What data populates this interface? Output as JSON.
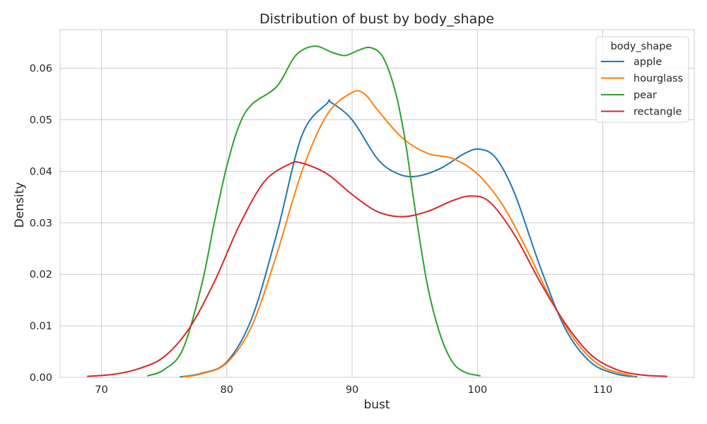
{
  "chart_data": {
    "type": "line",
    "title": "Distribution of bust by body_shape",
    "xlabel": "bust",
    "ylabel": "Density",
    "xlim": [
      66.7,
      117.3
    ],
    "ylim": [
      0,
      0.0675
    ],
    "xticks": [
      70,
      80,
      90,
      100,
      110
    ],
    "yticks": [
      0.0,
      0.01,
      0.02,
      0.03,
      0.04,
      0.05,
      0.06
    ],
    "ytick_labels": [
      "0.00",
      "0.01",
      "0.02",
      "0.03",
      "0.04",
      "0.05",
      "0.06"
    ],
    "grid": true,
    "legend": {
      "title": "body_shape",
      "placement": "upper right"
    },
    "series": [
      {
        "name": "apple",
        "color": "#1f77b4",
        "x": [
          76.3,
          78,
          80,
          82,
          84,
          86,
          88,
          88.3,
          90,
          92,
          93.5,
          95,
          97,
          99,
          100.2,
          101.5,
          103,
          105,
          107,
          109,
          111,
          112.7
        ],
        "y": [
          0.0001,
          0.0008,
          0.003,
          0.0115,
          0.028,
          0.047,
          0.0532,
          0.0534,
          0.05,
          0.0425,
          0.0397,
          0.039,
          0.0405,
          0.0435,
          0.0443,
          0.0425,
          0.0355,
          0.0215,
          0.0095,
          0.003,
          0.0007,
          0.0001
        ]
      },
      {
        "name": "hourglass",
        "color": "#ff7f0e",
        "x": [
          76.5,
          78,
          80,
          82,
          84,
          86,
          88,
          90,
          91,
          92,
          94,
          96,
          98,
          100,
          102,
          104,
          106,
          108,
          110,
          112.5
        ],
        "y": [
          0.0001,
          0.0007,
          0.0028,
          0.01,
          0.024,
          0.04,
          0.051,
          0.0553,
          0.055,
          0.052,
          0.0465,
          0.0435,
          0.0425,
          0.0395,
          0.0335,
          0.0245,
          0.0145,
          0.0065,
          0.002,
          0.0002
        ]
      },
      {
        "name": "pear",
        "color": "#2ca02c",
        "x": [
          73.7,
          75,
          76.5,
          78,
          79,
          80,
          81,
          82,
          84,
          85.5,
          87,
          88.5,
          89.5,
          90.5,
          91.5,
          92.5,
          93.5,
          94.3,
          95,
          96,
          97,
          98,
          99,
          100.2
        ],
        "y": [
          0.0003,
          0.0015,
          0.0055,
          0.018,
          0.03,
          0.041,
          0.049,
          0.053,
          0.0565,
          0.0625,
          0.0643,
          0.063,
          0.0625,
          0.0635,
          0.064,
          0.062,
          0.055,
          0.045,
          0.033,
          0.018,
          0.0085,
          0.003,
          0.001,
          0.0003
        ]
      },
      {
        "name": "rectangle",
        "color": "#d62728",
        "x": [
          68.9,
          71,
          73,
          75,
          77,
          79,
          81,
          83,
          85,
          86,
          88,
          90,
          92,
          94,
          96,
          98,
          99.5,
          101,
          103,
          105,
          107,
          109,
          111,
          113,
          115.1
        ],
        "y": [
          0.0002,
          0.0006,
          0.0017,
          0.004,
          0.0095,
          0.0185,
          0.0295,
          0.038,
          0.0414,
          0.0416,
          0.0395,
          0.0355,
          0.0322,
          0.0312,
          0.0322,
          0.0343,
          0.0352,
          0.034,
          0.0275,
          0.0185,
          0.0105,
          0.0045,
          0.0016,
          0.0005,
          0.0002
        ]
      }
    ]
  }
}
